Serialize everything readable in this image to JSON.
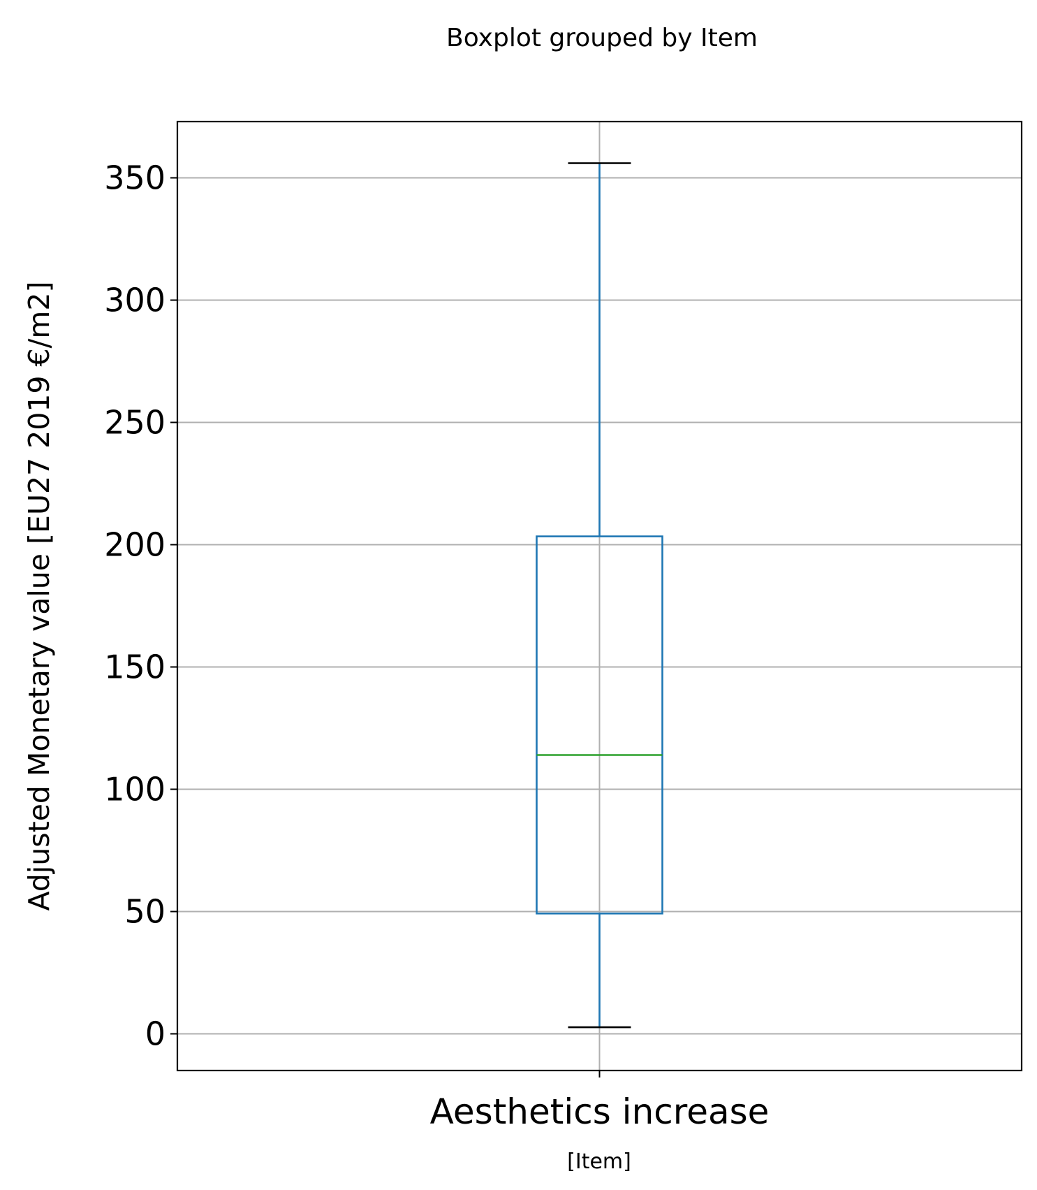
{
  "chart_data": {
    "type": "boxplot",
    "title": "Boxplot grouped by Item",
    "xlabel": "[Item]",
    "ylabel": "Adjusted Monetary value [EU27 2019 €/m2]",
    "categories": [
      "Aesthetics increase"
    ],
    "boxes": [
      {
        "category": "Aesthetics increase",
        "whisker_low": 2.7,
        "q1": 49.2,
        "median": 114,
        "q3": 203.4,
        "whisker_high": 356
      }
    ],
    "ylim": [
      -15,
      373
    ],
    "yticks": [
      0,
      50,
      100,
      150,
      200,
      250,
      300,
      350
    ],
    "ytick_labels": [
      "0",
      "50",
      "100",
      "150",
      "200",
      "250",
      "300",
      "350"
    ],
    "grid": true,
    "colors": {
      "box": "#1f77b4",
      "median": "#2ca02c",
      "caps": "#000000",
      "grid": "#b0b0b0",
      "axes": "#000000"
    }
  }
}
